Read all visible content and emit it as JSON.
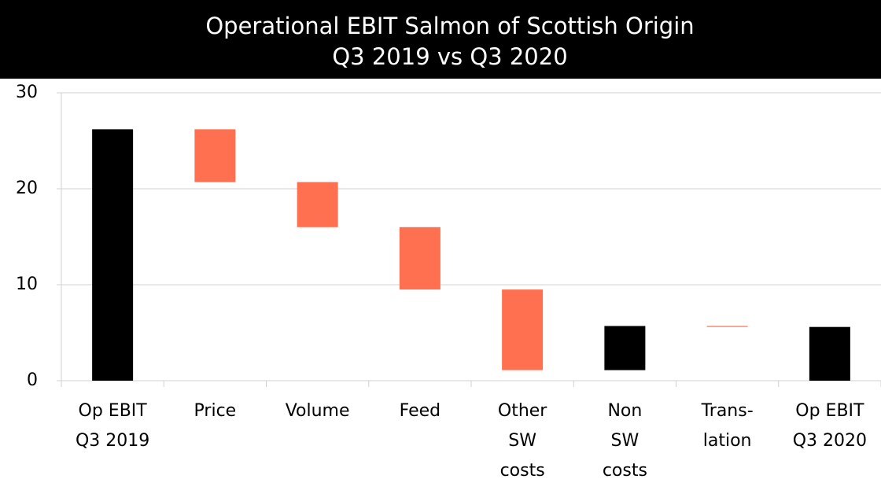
{
  "chart_data": {
    "type": "waterfall",
    "title": "Operational EBIT Salmon of Scottish Origin",
    "subtitle": "Q3 2019 vs Q3 2020",
    "categories": [
      [
        "Op EBIT",
        "Q3 2019"
      ],
      [
        "Price"
      ],
      [
        "Volume"
      ],
      [
        "Feed"
      ],
      [
        "Other",
        "SW",
        "costs"
      ],
      [
        "Non",
        "SW",
        "costs"
      ],
      [
        "Trans-",
        "lation"
      ],
      [
        "Op EBIT",
        "Q3 2020"
      ]
    ],
    "values": [
      26.2,
      -5.5,
      -4.7,
      -6.5,
      -8.4,
      4.6,
      -0.1,
      5.6
    ],
    "measure": [
      "total",
      "relative",
      "relative",
      "relative",
      "relative",
      "relative",
      "relative",
      "total"
    ],
    "total_color": "#000000",
    "increase_color": "#000000",
    "decrease_color": "#ff7050",
    "ylim": [
      0,
      30
    ],
    "yticks": [
      0,
      10,
      20,
      30
    ],
    "grid": true
  }
}
